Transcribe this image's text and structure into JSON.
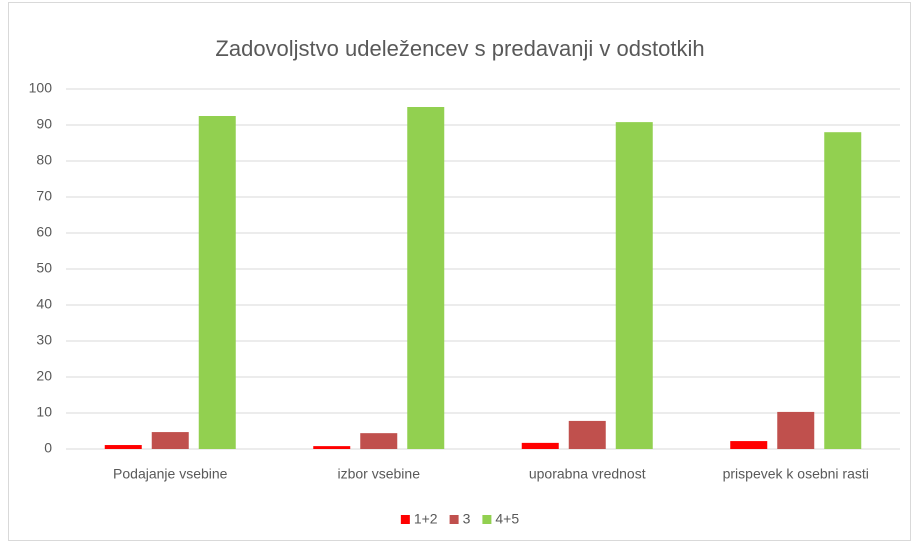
{
  "chart_data": {
    "type": "bar",
    "title": "Zadovoljstvo udeležencev s predavanji  v odstotkih",
    "categories": [
      "Podajanje vsebine",
      "izbor vsebine",
      "uporabna vrednost",
      "prispevek k osebni rasti"
    ],
    "series": [
      {
        "name": "1+2",
        "color": "#ff0000",
        "values": [
          1.1,
          0.8,
          1.7,
          2.2
        ]
      },
      {
        "name": "3",
        "color": "#c0504d",
        "values": [
          4.7,
          4.4,
          7.8,
          10.3
        ]
      },
      {
        "name": "4+5",
        "color": "#92d050",
        "values": [
          92.5,
          95,
          90.8,
          88
        ]
      }
    ],
    "ylim": [
      0,
      100
    ],
    "yticks": [
      0,
      10,
      20,
      30,
      40,
      50,
      60,
      70,
      80,
      90,
      100
    ],
    "grid": true,
    "legend": "bottom"
  }
}
